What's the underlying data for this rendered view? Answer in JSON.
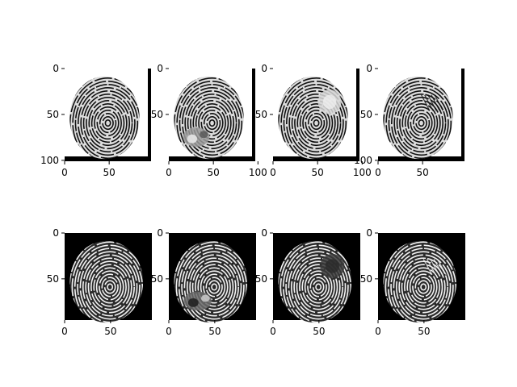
{
  "figure": {
    "background": "#ffffff",
    "rows": 2,
    "cols": 4
  },
  "chart_data": [
    {
      "type": "heatmap",
      "row": 0,
      "col": 0,
      "variant": "original",
      "polarity": "dark-ridges",
      "xticks": [
        0,
        50
      ],
      "yticks": [
        0,
        50,
        100
      ],
      "xlim": [
        0,
        97
      ],
      "ylim": [
        101,
        0
      ]
    },
    {
      "type": "heatmap",
      "row": 0,
      "col": 1,
      "variant": "occluded-lower-left",
      "polarity": "dark-ridges",
      "xticks": [
        0,
        50,
        100
      ],
      "yticks": [
        0,
        50
      ],
      "xlim": [
        0,
        97
      ],
      "ylim": [
        101,
        0
      ]
    },
    {
      "type": "heatmap",
      "row": 0,
      "col": 2,
      "variant": "blurred-upper-right",
      "polarity": "dark-ridges",
      "xticks": [
        0,
        50,
        100
      ],
      "yticks": [
        0,
        50
      ],
      "xlim": [
        0,
        97
      ],
      "ylim": [
        101,
        0
      ]
    },
    {
      "type": "heatmap",
      "row": 0,
      "col": 3,
      "variant": "altered-center-right",
      "polarity": "dark-ridges",
      "xticks": [
        0,
        50
      ],
      "yticks": [
        0,
        50,
        100
      ],
      "xlim": [
        0,
        97
      ],
      "ylim": [
        101,
        0
      ]
    },
    {
      "type": "heatmap",
      "row": 1,
      "col": 0,
      "variant": "original",
      "polarity": "white-ridges",
      "xticks": [
        0,
        50
      ],
      "yticks": [
        0,
        50
      ],
      "xlim": [
        0,
        95
      ],
      "ylim": [
        95,
        0
      ]
    },
    {
      "type": "heatmap",
      "row": 1,
      "col": 1,
      "variant": "occluded-lower-left",
      "polarity": "white-ridges",
      "xticks": [
        0,
        50
      ],
      "yticks": [
        0,
        50
      ],
      "xlim": [
        0,
        95
      ],
      "ylim": [
        95,
        0
      ]
    },
    {
      "type": "heatmap",
      "row": 1,
      "col": 2,
      "variant": "blurred-upper-right",
      "polarity": "white-ridges",
      "xticks": [
        0,
        50
      ],
      "yticks": [
        0,
        50
      ],
      "xlim": [
        0,
        95
      ],
      "ylim": [
        95,
        0
      ]
    },
    {
      "type": "heatmap",
      "row": 1,
      "col": 3,
      "variant": "altered-center-right",
      "polarity": "white-ridges",
      "xticks": [
        0,
        50
      ],
      "yticks": [
        0,
        50
      ],
      "xlim": [
        0,
        95
      ],
      "ylim": [
        95,
        0
      ]
    }
  ]
}
